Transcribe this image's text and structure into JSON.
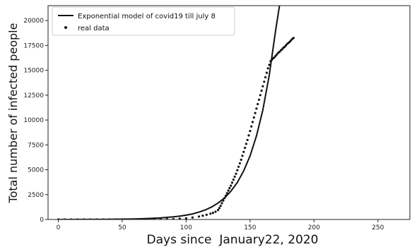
{
  "chart_data": {
    "type": "scatter",
    "title": "",
    "xlabel": "Days since  January22, 2020",
    "ylabel": "Total number of infected people",
    "xlim": [
      -8,
      275
    ],
    "ylim": [
      0,
      21500
    ],
    "xticks": [
      0,
      50,
      100,
      150,
      200,
      250
    ],
    "yticks": [
      0,
      2500,
      5000,
      7500,
      10000,
      12500,
      15000,
      17500,
      20000
    ],
    "grid": false,
    "legend_position": "top-left",
    "series": [
      {
        "name": "Exponential model of covid19 till july 8",
        "kind": "line",
        "color": "#111111",
        "x": [
          0,
          10,
          20,
          30,
          40,
          50,
          60,
          70,
          80,
          90,
          95,
          100,
          105,
          110,
          115,
          120,
          125,
          130,
          135,
          140,
          145,
          150,
          155,
          160,
          165,
          170,
          173
        ],
        "y": [
          0,
          2,
          5,
          10,
          20,
          35,
          60,
          100,
          160,
          260,
          330,
          430,
          560,
          740,
          960,
          1260,
          1650,
          2160,
          2840,
          3720,
          4880,
          6400,
          8400,
          11000,
          14500,
          19000,
          21500
        ]
      },
      {
        "name": "real data",
        "kind": "scatter",
        "color": "#111111",
        "x": [
          0,
          5,
          10,
          15,
          20,
          25,
          30,
          35,
          40,
          45,
          50,
          55,
          60,
          65,
          70,
          75,
          80,
          85,
          90,
          95,
          100,
          105,
          110,
          113,
          116,
          119,
          121,
          123,
          125,
          126,
          127,
          128,
          129,
          130,
          131,
          132,
          133,
          134,
          135,
          136,
          137,
          138,
          139,
          140,
          141,
          142,
          143,
          144,
          145,
          146,
          147,
          148,
          149,
          150,
          151,
          152,
          153,
          154,
          155,
          156,
          157,
          158,
          159,
          160,
          161,
          162,
          163,
          164,
          165,
          166,
          167,
          168,
          169,
          170,
          171,
          172,
          173,
          174,
          175,
          176,
          177,
          178,
          179,
          180,
          181,
          182,
          183,
          184
        ],
        "y": [
          0,
          0,
          0,
          0,
          0,
          0,
          0,
          0,
          0,
          0,
          0,
          0,
          0,
          5,
          10,
          15,
          20,
          30,
          50,
          80,
          120,
          200,
          300,
          380,
          470,
          580,
          670,
          780,
          950,
          1150,
          1380,
          1640,
          1900,
          2150,
          2400,
          2650,
          2900,
          3150,
          3400,
          3700,
          4000,
          4300,
          4600,
          4950,
          5300,
          5650,
          6000,
          6400,
          6800,
          7200,
          7600,
          8000,
          8450,
          8900,
          9350,
          9800,
          10250,
          10700,
          11150,
          11600,
          12050,
          12500,
          12950,
          13400,
          13850,
          14300,
          14750,
          15200,
          15550,
          15900,
          16050,
          16200,
          16300,
          16450,
          16600,
          16750,
          16850,
          17000,
          17100,
          17250,
          17350,
          17500,
          17650,
          17750,
          17850,
          18000,
          18150,
          18250
        ]
      }
    ]
  }
}
